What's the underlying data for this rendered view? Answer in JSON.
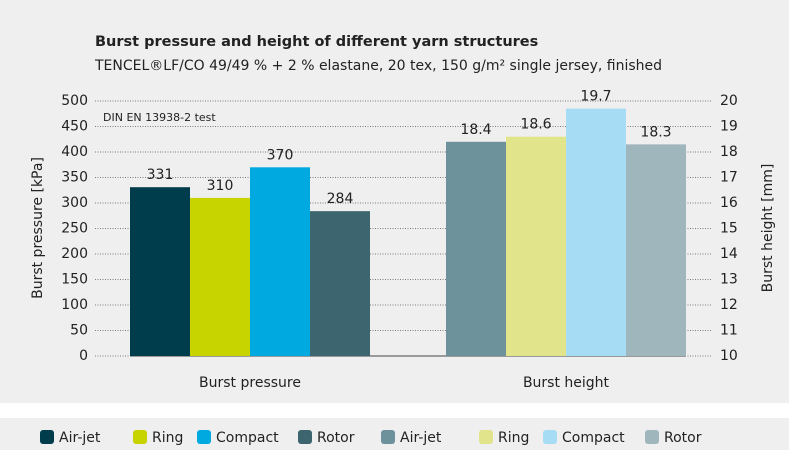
{
  "chart_data": {
    "type": "bar",
    "title": "Burst pressure and height of different yarn structures",
    "subtitle": "TENCEL®LF/CO 49/49 % + 2 % elastane, 20 tex, 150 g/m² single jersey, finished",
    "annotation": "DIN EN 13938-2 test",
    "ylabel": "Burst pressure [kPa]",
    "y2label": "Burst height [mm]",
    "categories": [
      "Burst pressure",
      "Burst height"
    ],
    "series": [
      {
        "name": "Air-jet",
        "color": "#003d4c",
        "values": [
          331,
          null
        ]
      },
      {
        "name": "Ring",
        "color": "#c8d400",
        "values": [
          310,
          null
        ]
      },
      {
        "name": "Compact",
        "color": "#00a9e0",
        "values": [
          370,
          null
        ]
      },
      {
        "name": "Rotor",
        "color": "#3d6570",
        "values": [
          284,
          null
        ]
      },
      {
        "name": "Air-jet",
        "color": "#6e929b",
        "axis": "y2",
        "values": [
          null,
          18.4
        ]
      },
      {
        "name": "Ring",
        "color": "#e1e48a",
        "axis": "y2",
        "values": [
          null,
          18.6
        ]
      },
      {
        "name": "Compact",
        "color": "#a6dcf4",
        "axis": "y2",
        "values": [
          null,
          19.7
        ]
      },
      {
        "name": "Rotor",
        "color": "#a0b6bd",
        "axis": "y2",
        "values": [
          null,
          18.3
        ]
      }
    ],
    "ylim": [
      0,
      500
    ],
    "yticks": [
      0,
      50,
      100,
      150,
      200,
      250,
      300,
      350,
      400,
      450,
      500
    ],
    "y2lim": [
      10,
      20
    ],
    "y2ticks": [
      10,
      11,
      12,
      13,
      14,
      15,
      16,
      17,
      18,
      19,
      20
    ],
    "grid": true
  }
}
